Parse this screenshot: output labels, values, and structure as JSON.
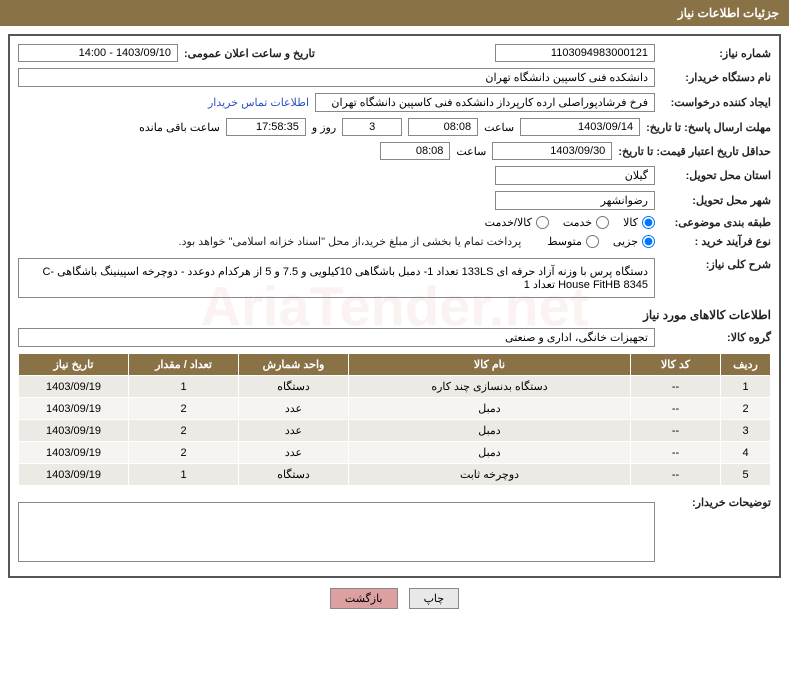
{
  "header": {
    "title": "جزئیات اطلاعات نیاز"
  },
  "watermark": "AriaTender.net",
  "fields": {
    "need_number_label": "شماره نیاز:",
    "need_number": "1103094983000121",
    "announce_date_label": "تاریخ و ساعت اعلان عمومی:",
    "announce_date": "1403/09/10 - 14:00",
    "buyer_org_label": "نام دستگاه خریدار:",
    "buyer_org": "دانشکده فنی کاسپین دانشگاه تهران",
    "requester_label": "ایجاد کننده درخواست:",
    "requester": "فرخ فرشادپوراصلی ارده کارپرداز دانشکده فنی کاسپین دانشگاه تهران",
    "contact_link": "اطلاعات تماس خریدار",
    "deadline_label": "مهلت ارسال پاسخ: تا تاریخ:",
    "deadline_date": "1403/09/14",
    "time_label": "ساعت",
    "deadline_time": "08:08",
    "remaining_days": "3",
    "days_and_label": "روز و",
    "remaining_hours": "17:58:35",
    "remaining_label": "ساعت باقی مانده",
    "validity_label": "حداقل تاریخ اعتبار قیمت: تا تاریخ:",
    "validity_date": "1403/09/30",
    "validity_time": "08:08",
    "province_label": "استان محل تحویل:",
    "province": "گیلان",
    "city_label": "شهر محل تحویل:",
    "city": "رضوانشهر",
    "category_label": "طبقه بندی موضوعی:",
    "cat_goods": "کالا",
    "cat_service": "خدمت",
    "cat_both": "کالا/خدمت",
    "process_label": "نوع فرآیند خرید :",
    "proc_partial": "جزیی",
    "proc_medium": "متوسط",
    "payment_note": "پرداخت تمام یا بخشی از مبلغ خرید،از محل \"اسناد خزانه اسلامی\" خواهد بود.",
    "summary_label": "شرح کلی نیاز:",
    "summary": "دستگاه پرس با وزنه آزاد حرفه ای 133LS تعداد 1- دمبل باشگاهی 10کیلویی و 7.5 و 5 از هرکدام دوعدد - دوچرخه اسپینینگ باشگاهی C-House FitHB 8345 تعداد 1",
    "items_title": "اطلاعات کالاهای مورد نیاز",
    "group_label": "گروه کالا:",
    "group": "تجهیزات خانگی، اداری و صنعتی",
    "notes_label": "توضیحات خریدار:"
  },
  "table": {
    "headers": {
      "row": "ردیف",
      "code": "کد کالا",
      "name": "نام کالا",
      "unit": "واحد شمارش",
      "qty": "تعداد / مقدار",
      "date": "تاریخ نیاز"
    },
    "rows": [
      {
        "row": "1",
        "code": "--",
        "name": "دستگاه بدنسازی چند کاره",
        "unit": "دستگاه",
        "qty": "1",
        "date": "1403/09/19"
      },
      {
        "row": "2",
        "code": "--",
        "name": "دمبل",
        "unit": "عدد",
        "qty": "2",
        "date": "1403/09/19"
      },
      {
        "row": "3",
        "code": "--",
        "name": "دمبل",
        "unit": "عدد",
        "qty": "2",
        "date": "1403/09/19"
      },
      {
        "row": "4",
        "code": "--",
        "name": "دمبل",
        "unit": "عدد",
        "qty": "2",
        "date": "1403/09/19"
      },
      {
        "row": "5",
        "code": "--",
        "name": "دوچرخه ثابت",
        "unit": "دستگاه",
        "qty": "1",
        "date": "1403/09/19"
      }
    ]
  },
  "buttons": {
    "print": "چاپ",
    "back": "بازگشت"
  },
  "colors": {
    "header_bg": "#8a7247",
    "row_bg": "#eceae4",
    "row_alt_bg": "#f5f4f0"
  }
}
